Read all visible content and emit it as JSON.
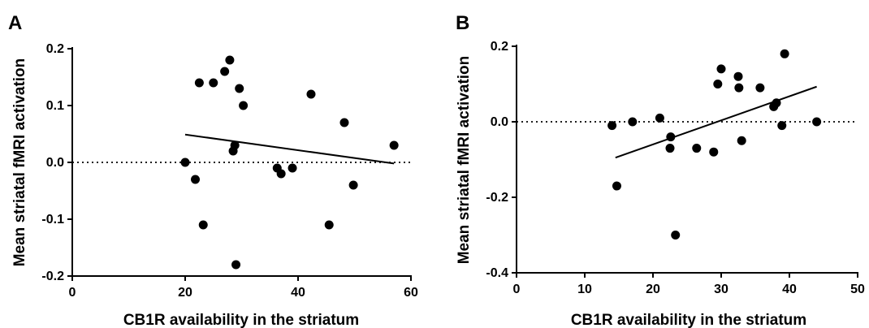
{
  "chart_data": [
    {
      "type": "scatter",
      "panel_label": "A",
      "xlabel": "CB1R availability in the striatum",
      "ylabel": "Mean striatal fMRI activation",
      "xlim": [
        0,
        60
      ],
      "ylim": [
        -0.2,
        0.2
      ],
      "x_ticks": [
        0,
        20,
        40,
        60
      ],
      "y_ticks": [
        -0.2,
        -0.1,
        0.0,
        0.1,
        0.2
      ],
      "y_tick_labels": [
        "-0.2",
        "-0.1",
        "0.0",
        "0.1",
        "0.2"
      ],
      "reference_line": {
        "y": 0,
        "style": "dotted"
      },
      "regression_line": {
        "x": [
          20,
          57
        ],
        "y": [
          0.049,
          -0.002
        ]
      },
      "points": [
        {
          "x": 20,
          "y": 0.0
        },
        {
          "x": 21.8,
          "y": -0.03
        },
        {
          "x": 22.5,
          "y": 0.14
        },
        {
          "x": 23.2,
          "y": -0.11
        },
        {
          "x": 25,
          "y": 0.14
        },
        {
          "x": 27,
          "y": 0.16
        },
        {
          "x": 27.9,
          "y": 0.18
        },
        {
          "x": 28.5,
          "y": 0.02
        },
        {
          "x": 28.8,
          "y": 0.03
        },
        {
          "x": 29,
          "y": -0.18
        },
        {
          "x": 29.6,
          "y": 0.13
        },
        {
          "x": 30.3,
          "y": 0.1
        },
        {
          "x": 36.3,
          "y": -0.01
        },
        {
          "x": 37,
          "y": -0.02
        },
        {
          "x": 39,
          "y": -0.01
        },
        {
          "x": 42.3,
          "y": 0.12
        },
        {
          "x": 45.5,
          "y": -0.11
        },
        {
          "x": 48.2,
          "y": 0.07
        },
        {
          "x": 49.8,
          "y": -0.04
        },
        {
          "x": 57,
          "y": 0.03
        }
      ]
    },
    {
      "type": "scatter",
      "panel_label": "B",
      "xlabel": "CB1R availability in the striatum",
      "ylabel": "Mean striatal fMRI activation",
      "xlim": [
        0,
        50
      ],
      "ylim": [
        -0.4,
        0.2
      ],
      "x_ticks": [
        0,
        10,
        20,
        30,
        40,
        50
      ],
      "y_ticks": [
        -0.4,
        -0.2,
        0.0,
        0.2
      ],
      "y_tick_labels": [
        "-0.4",
        "-0.2",
        "0.0",
        "0.2"
      ],
      "reference_line": {
        "y": 0,
        "style": "dotted"
      },
      "regression_line": {
        "x": [
          14.5,
          44
        ],
        "y": [
          -0.095,
          0.093
        ]
      },
      "points": [
        {
          "x": 14,
          "y": -0.01
        },
        {
          "x": 14.7,
          "y": -0.17
        },
        {
          "x": 17,
          "y": 0.0
        },
        {
          "x": 21,
          "y": 0.01
        },
        {
          "x": 22.5,
          "y": -0.07
        },
        {
          "x": 22.6,
          "y": -0.04
        },
        {
          "x": 23.3,
          "y": -0.3
        },
        {
          "x": 26.4,
          "y": -0.07
        },
        {
          "x": 28.9,
          "y": -0.08
        },
        {
          "x": 29.5,
          "y": 0.1
        },
        {
          "x": 30,
          "y": 0.14
        },
        {
          "x": 32.5,
          "y": 0.12
        },
        {
          "x": 32.6,
          "y": 0.09
        },
        {
          "x": 33,
          "y": -0.05
        },
        {
          "x": 35.7,
          "y": 0.09
        },
        {
          "x": 37.7,
          "y": 0.04
        },
        {
          "x": 38.1,
          "y": 0.05
        },
        {
          "x": 38.9,
          "y": -0.01
        },
        {
          "x": 39.3,
          "y": 0.18
        },
        {
          "x": 44,
          "y": 0.0
        }
      ]
    }
  ]
}
